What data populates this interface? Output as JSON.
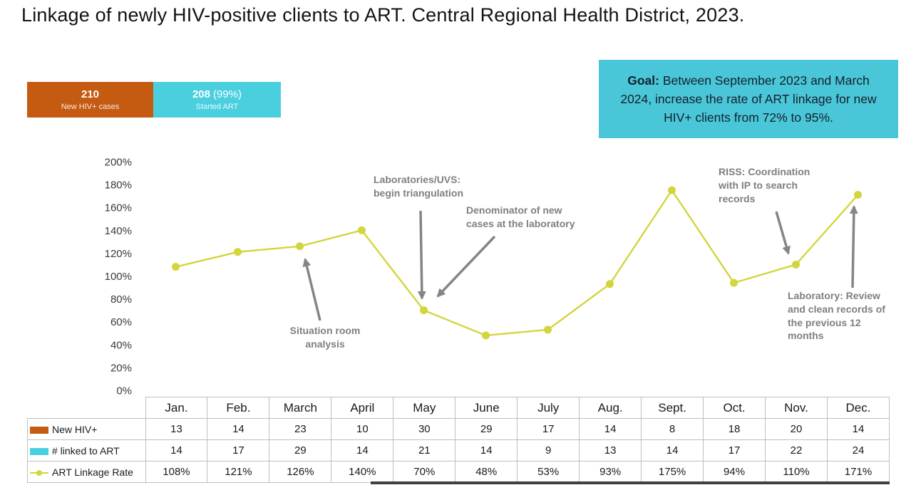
{
  "title": "Linkage of newly HIV-positive clients to ART. Central Regional Health District, 2023.",
  "summary": {
    "new_cases": {
      "value": "210",
      "label": "New HIV+ cases"
    },
    "started_art": {
      "value": "208",
      "pct": "(99%)",
      "label": "Started ART"
    }
  },
  "goal": {
    "label": "Goal:",
    "text": " Between September 2023 and March 2024, increase the rate of ART linkage for new HIV+ clients from 72% to 95%."
  },
  "annotations": [
    {
      "text": "Situation room analysis"
    },
    {
      "text": "Laboratories/UVS: begin triangulation"
    },
    {
      "text": "Denominator of new cases at the laboratory"
    },
    {
      "text": "RISS: Coordination with IP to search records"
    },
    {
      "text": "Laboratory: Review and clean records of the previous 12 months"
    }
  ],
  "colors": {
    "accent_orange": "#C55A11",
    "accent_cyan": "#4ACFDF",
    "goal_cyan": "#49C7D8",
    "line_yellow": "#D3D53D",
    "annotation_gray": "#7F7F7F",
    "arrow_gray": "#858585"
  },
  "chart_data": {
    "type": "line",
    "title": "ART Linkage Rate by month, 2023",
    "categories": [
      "Jan.",
      "Feb.",
      "March",
      "April",
      "May",
      "June",
      "July",
      "Aug.",
      "Sept.",
      "Oct.",
      "Nov.",
      "Dec."
    ],
    "series": [
      {
        "name": "New HIV+",
        "color": "#C55A11",
        "type": "table-row",
        "values": [
          13,
          14,
          23,
          10,
          30,
          29,
          17,
          14,
          8,
          18,
          20,
          14
        ]
      },
      {
        "name": "# linked to ART",
        "color": "#4ACFDF",
        "type": "table-row",
        "values": [
          14,
          17,
          29,
          14,
          21,
          14,
          9,
          13,
          14,
          17,
          22,
          24
        ]
      },
      {
        "name": "ART Linkage Rate",
        "color": "#D3D53D",
        "type": "line",
        "values": [
          108,
          121,
          126,
          140,
          70,
          48,
          53,
          93,
          175,
          94,
          110,
          171
        ],
        "unit": "%"
      }
    ],
    "xlabel": "",
    "ylabel": "",
    "ylim": [
      0,
      200
    ],
    "ytick_step": 20,
    "ytick_format": "percent",
    "grid": false,
    "legend_position": "table-left"
  }
}
